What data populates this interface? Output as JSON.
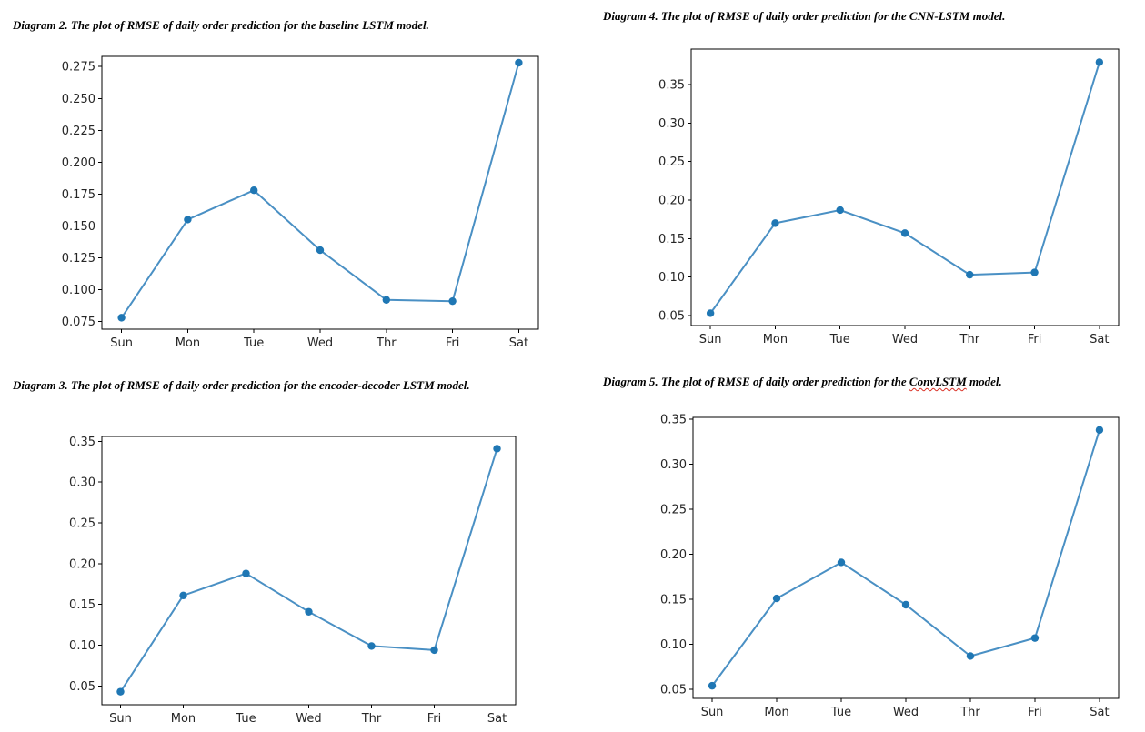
{
  "captions": [
    "Diagram 2. The plot of RMSE of daily order prediction for the baseline LSTM model.",
    "Diagram 3. The plot of RMSE of daily order prediction for the encoder-decoder LSTM model.",
    "Diagram 4. The plot of RMSE of daily order prediction for the CNN-LSTM model.",
    "Diagram 5. The plot of RMSE of daily order prediction for the ConvLSTM model."
  ],
  "caption_parts": {
    "diagram5_prefix": "Diagram 5. The plot of RMSE of daily order prediction for the ",
    "diagram5_model": "ConvLSTM",
    "diagram5_suffix": " model."
  },
  "colors": {
    "line": "#4a90c4",
    "marker": "#1f77b4",
    "axes": "#000000",
    "tick_text": "#262626",
    "spellcheck_underline": "#d93025"
  },
  "chart_data": [
    {
      "type": "line",
      "markers": true,
      "grid": false,
      "legend": "none",
      "categories": [
        "Sun",
        "Mon",
        "Tue",
        "Wed",
        "Thr",
        "Fri",
        "Sat"
      ],
      "values": [
        0.078,
        0.155,
        0.178,
        0.131,
        0.092,
        0.091,
        0.278
      ],
      "ylim": [
        0.069,
        0.283
      ],
      "yticks": [
        "0.075",
        "0.100",
        "0.125",
        "0.150",
        "0.175",
        "0.200",
        "0.225",
        "0.250",
        "0.275"
      ]
    },
    {
      "type": "line",
      "markers": true,
      "grid": false,
      "legend": "none",
      "categories": [
        "Sun",
        "Mon",
        "Tue",
        "Wed",
        "Thr",
        "Fri",
        "Sat"
      ],
      "values": [
        0.043,
        0.161,
        0.188,
        0.141,
        0.099,
        0.094,
        0.341
      ],
      "ylim": [
        0.027,
        0.356
      ],
      "yticks": [
        "0.05",
        "0.10",
        "0.15",
        "0.20",
        "0.25",
        "0.30",
        "0.35"
      ]
    },
    {
      "type": "line",
      "markers": true,
      "grid": false,
      "legend": "none",
      "categories": [
        "Sun",
        "Mon",
        "Tue",
        "Wed",
        "Thr",
        "Fri",
        "Sat"
      ],
      "values": [
        0.053,
        0.17,
        0.187,
        0.157,
        0.103,
        0.106,
        0.379
      ],
      "ylim": [
        0.037,
        0.396
      ],
      "yticks": [
        "0.05",
        "0.10",
        "0.15",
        "0.20",
        "0.25",
        "0.30",
        "0.35"
      ]
    },
    {
      "type": "line",
      "markers": true,
      "grid": false,
      "legend": "none",
      "categories": [
        "Sun",
        "Mon",
        "Tue",
        "Wed",
        "Thr",
        "Fri",
        "Sat"
      ],
      "values": [
        0.054,
        0.151,
        0.191,
        0.144,
        0.087,
        0.107,
        0.338
      ],
      "ylim": [
        0.04,
        0.352
      ],
      "yticks": [
        "0.05",
        "0.10",
        "0.15",
        "0.20",
        "0.25",
        "0.30",
        "0.35"
      ]
    }
  ]
}
